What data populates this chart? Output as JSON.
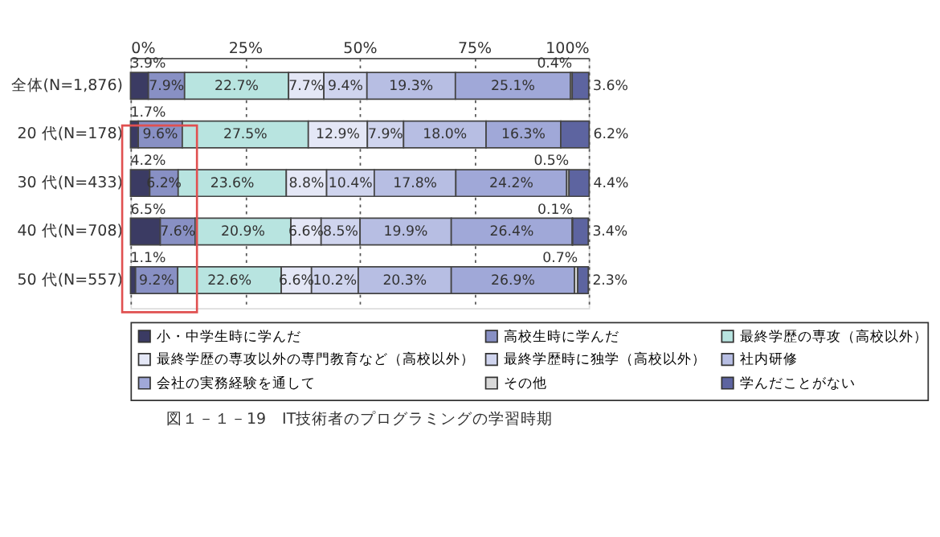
{
  "chart_data": {
    "type": "bar",
    "orientation": "horizontal",
    "stacked": true,
    "title": "図１－１－19　IT技術者のプログラミングの学習時期",
    "categories": [
      "全体(N=1,876)",
      "20 代(N=178)",
      "30 代(N=433)",
      "40 代(N=708)",
      "50 代(N=557)"
    ],
    "series": [
      {
        "name": "小・中学生時に学んだ",
        "color": "#3b3b63",
        "values": [
          3.9,
          1.7,
          4.2,
          6.5,
          1.1
        ],
        "value_labels": [
          "3.9%",
          "1.7%",
          "4.2%",
          "6.5%",
          "1.1%"
        ]
      },
      {
        "name": "高校生時に学んだ",
        "color": "#8890c4",
        "values": [
          7.9,
          9.6,
          6.2,
          7.6,
          9.2
        ],
        "value_labels": [
          "7.9%",
          "9.6%",
          "6.2%",
          "7.6%",
          "9.2%"
        ]
      },
      {
        "name": "最終学歴の専攻（高校以外）",
        "color": "#b8e4e0",
        "values": [
          22.7,
          27.5,
          23.6,
          20.9,
          22.6
        ],
        "value_labels": [
          "22.7%",
          "27.5%",
          "23.6%",
          "20.9%",
          "22.6%"
        ]
      },
      {
        "name": "最終学歴の専攻以外の専門教育など（高校以外）",
        "color": "#e4e7f6",
        "values": [
          7.7,
          12.9,
          8.8,
          6.6,
          6.6
        ],
        "value_labels": [
          "7.7%",
          "12.9%",
          "8.8%",
          "6.6%",
          "6.6%"
        ]
      },
      {
        "name": "最終学歴時に独学（高校以外）",
        "color": "#cfd4ee",
        "values": [
          9.4,
          7.9,
          10.4,
          8.5,
          10.2
        ],
        "value_labels": [
          "9.4%",
          "7.9%",
          "10.4%",
          "8.5%",
          "10.2%"
        ]
      },
      {
        "name": "社内研修",
        "color": "#b7bee3",
        "values": [
          19.3,
          18.0,
          17.8,
          19.9,
          20.3
        ],
        "value_labels": [
          "19.3%",
          "18.0%",
          "17.8%",
          "19.9%",
          "20.3%"
        ]
      },
      {
        "name": "会社の実務経験を通して",
        "color": "#a0a8d8",
        "values": [
          25.1,
          16.3,
          24.2,
          26.4,
          26.9
        ],
        "value_labels": [
          "25.1%",
          "16.3%",
          "24.2%",
          "26.4%",
          "26.9%"
        ]
      },
      {
        "name": "その他",
        "color": "#d9d9d9",
        "values": [
          0.4,
          null,
          0.5,
          0.1,
          0.7
        ],
        "value_labels": [
          "0.4%",
          null,
          "0.5%",
          "0.1%",
          "0.7%"
        ]
      },
      {
        "name": "学んだことがない",
        "color": "#5d64a0",
        "values": [
          3.6,
          6.2,
          4.4,
          3.4,
          2.3
        ],
        "value_labels": [
          "3.6%",
          "6.2%",
          "4.4%",
          "3.4%",
          "2.3%"
        ]
      }
    ],
    "xlim": [
      0,
      100
    ],
    "xticks": [
      {
        "value": 0,
        "label": "0%"
      },
      {
        "value": 25,
        "label": "25%"
      },
      {
        "value": 50,
        "label": "50%"
      },
      {
        "value": 75,
        "label": "75%"
      },
      {
        "value": 100,
        "label": "100%"
      }
    ],
    "grid": "x",
    "legend": "bottom"
  }
}
